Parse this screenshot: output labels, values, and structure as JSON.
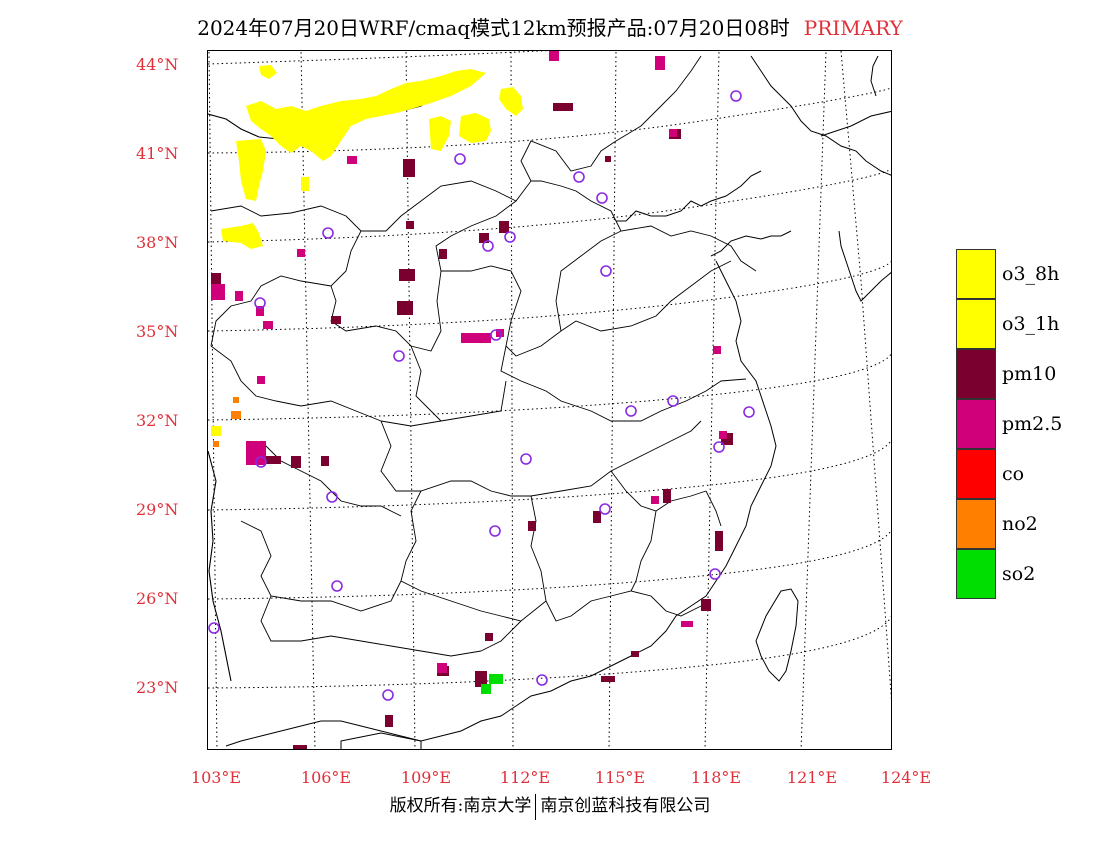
{
  "title": {
    "main": "2024年07月20日WRF/cmaq模式12km预报产品:07月20日08时",
    "tag": "PRIMARY"
  },
  "lat_labels": [
    "44°N",
    "41°N",
    "38°N",
    "35°N",
    "32°N",
    "29°N",
    "26°N",
    "23°N"
  ],
  "lon_labels": [
    "103°E",
    "106°E",
    "109°E",
    "112°E",
    "115°E",
    "118°E",
    "121°E",
    "124°E"
  ],
  "legend": [
    {
      "label": "o3_8h",
      "color": "#ffff00"
    },
    {
      "label": "o3_1h",
      "color": "#ffff00"
    },
    {
      "label": "pm10",
      "color": "#7a0030"
    },
    {
      "label": "pm2.5",
      "color": "#d0007a"
    },
    {
      "label": "co",
      "color": "#ff0000"
    },
    {
      "label": "no2",
      "color": "#ff7f00"
    },
    {
      "label": "so2",
      "color": "#00dd00"
    }
  ],
  "footer": {
    "left": "版权所有:南京大学",
    "right": "南京创蓝科技有限公司"
  }
}
